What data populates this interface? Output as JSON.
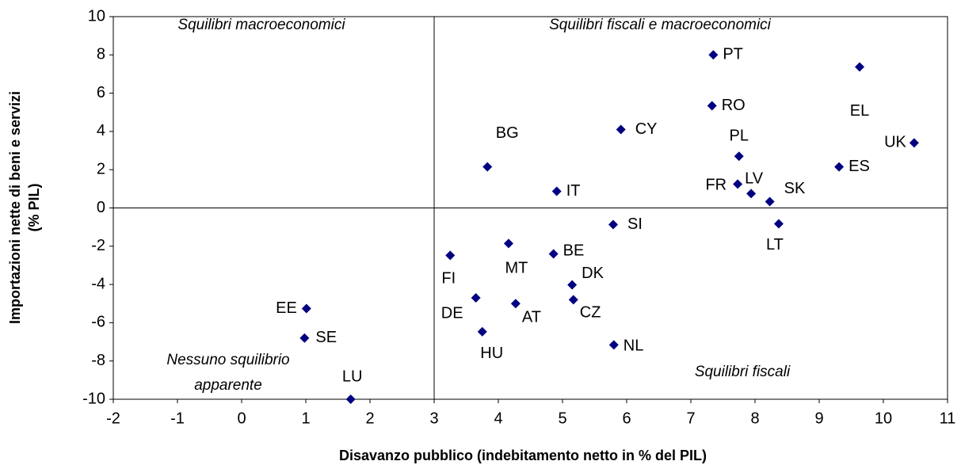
{
  "chart_data": {
    "type": "scatter",
    "x_label": "Disavanzo pubblico (indebitamento netto in % del PIL)",
    "y_label": [
      "Importazioni nette di beni e servizi",
      "(% PIL)"
    ],
    "annotations": [
      "Squilibri macroeconomici",
      "Squilibri fiscali e macroeconomici",
      "Nessuno squilibrio",
      "apparente",
      "Squilibri fiscali"
    ],
    "color": "#000080",
    "quadrant_lines": {
      "x": 3,
      "y": 0
    },
    "labels": [
      "PT",
      "EL",
      "RO",
      "CY",
      "PL",
      "UK",
      "BG",
      "ES",
      "IT",
      "FR",
      "LV",
      "SK",
      "LT",
      "SI",
      "MT",
      "FI",
      "BE",
      "DK",
      "DE",
      "AT",
      "CZ",
      "HU",
      "NL",
      "EE",
      "SE",
      "LU"
    ],
    "x": [
      7.35,
      9.63,
      7.33,
      5.91,
      7.75,
      10.48,
      3.83,
      9.31,
      4.91,
      7.73,
      7.94,
      8.23,
      8.37,
      5.79,
      4.16,
      3.25,
      4.86,
      5.15,
      3.65,
      4.27,
      5.17,
      3.75,
      5.8,
      1.01,
      0.98,
      1.7
    ],
    "values": [
      8.0,
      7.37,
      5.34,
      4.1,
      2.7,
      3.4,
      2.15,
      2.15,
      0.87,
      1.25,
      0.75,
      0.33,
      -0.83,
      -0.87,
      -1.86,
      -2.48,
      -2.4,
      -4.02,
      -4.7,
      -5.0,
      -4.8,
      -6.47,
      -7.16,
      -5.26,
      -6.8,
      -10
    ],
    "xlim": [
      -2,
      11
    ],
    "xticks": [
      -2,
      -1,
      0,
      1,
      2,
      3,
      4,
      5,
      6,
      7,
      8,
      9,
      10,
      11
    ],
    "ylim": [
      -10,
      10
    ],
    "yticks": [
      -10,
      -8,
      -6,
      -4,
      -2,
      0,
      2,
      4,
      6,
      8,
      10
    ]
  }
}
